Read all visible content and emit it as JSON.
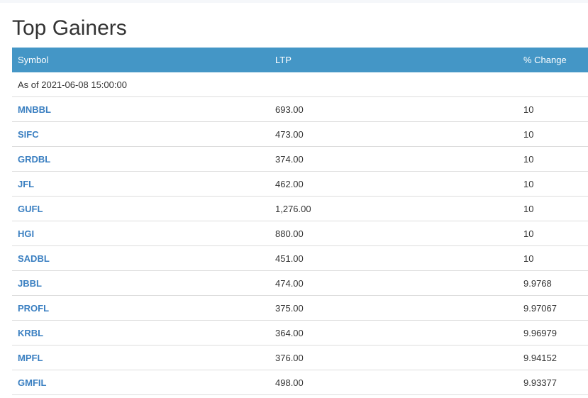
{
  "title": "Top Gainers",
  "colors": {
    "header_bg": "#4496c6",
    "link": "#3a7fc1"
  },
  "columns": [
    "Symbol",
    "LTP",
    "% Change"
  ],
  "as_of": "As of 2021-06-08 15:00:00",
  "rows": [
    {
      "symbol": "MNBBL",
      "ltp": "693.00",
      "change": "10"
    },
    {
      "symbol": "SIFC",
      "ltp": "473.00",
      "change": "10"
    },
    {
      "symbol": "GRDBL",
      "ltp": "374.00",
      "change": "10"
    },
    {
      "symbol": "JFL",
      "ltp": "462.00",
      "change": "10"
    },
    {
      "symbol": "GUFL",
      "ltp": "1,276.00",
      "change": "10"
    },
    {
      "symbol": "HGI",
      "ltp": "880.00",
      "change": "10"
    },
    {
      "symbol": "SADBL",
      "ltp": "451.00",
      "change": "10"
    },
    {
      "symbol": "JBBL",
      "ltp": "474.00",
      "change": "9.9768"
    },
    {
      "symbol": "PROFL",
      "ltp": "375.00",
      "change": "9.97067"
    },
    {
      "symbol": "KRBL",
      "ltp": "364.00",
      "change": "9.96979"
    },
    {
      "symbol": "MPFL",
      "ltp": "376.00",
      "change": "9.94152"
    },
    {
      "symbol": "GMFIL",
      "ltp": "498.00",
      "change": "9.93377"
    }
  ]
}
